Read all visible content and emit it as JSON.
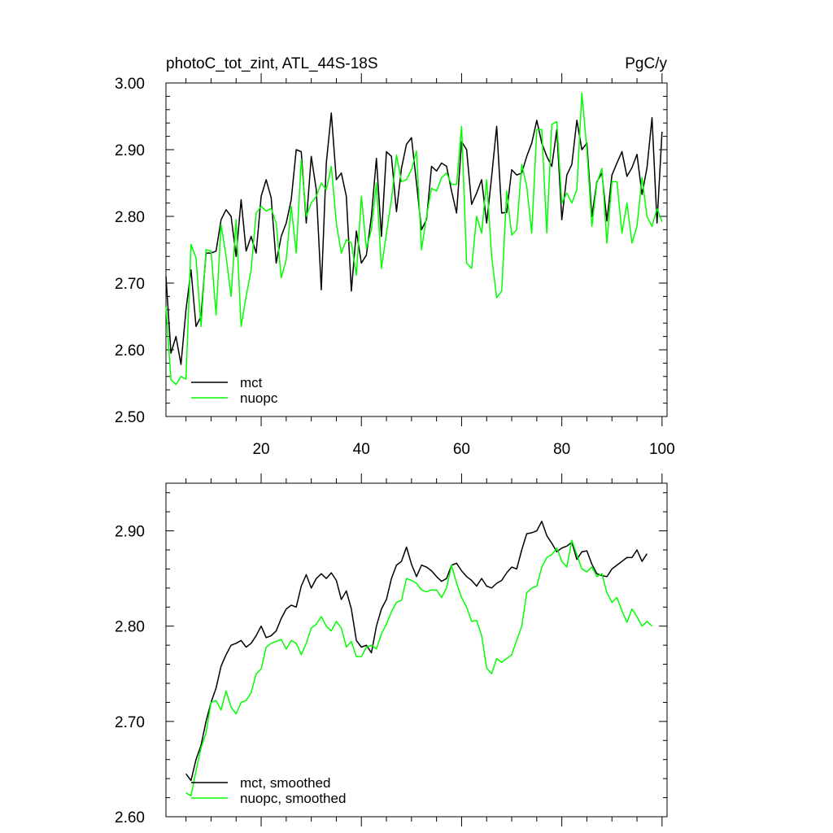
{
  "chart_data": [
    {
      "type": "line",
      "title": "photoC_tot_zint, ATL_44S-18S",
      "units": "PgC/y",
      "xlim": [
        1,
        101
      ],
      "ylim": [
        2.5,
        3.0
      ],
      "xticks": [
        20,
        40,
        60,
        80,
        100
      ],
      "yticks": [
        2.5,
        2.6,
        2.7,
        2.8,
        2.9,
        3.0
      ],
      "yticklabels": [
        "2.50",
        "2.60",
        "2.70",
        "2.80",
        "2.90",
        "3.00"
      ],
      "legend_position": "bottom-left",
      "series": [
        {
          "name": "mct",
          "color": "#000000",
          "x_start": 1,
          "values": [
            2.71,
            2.595,
            2.62,
            2.578,
            2.66,
            2.72,
            2.635,
            2.65,
            2.745,
            2.745,
            2.748,
            2.795,
            2.81,
            2.8,
            2.74,
            2.825,
            2.748,
            2.77,
            2.745,
            2.83,
            2.855,
            2.828,
            2.73,
            2.77,
            2.79,
            2.825,
            2.9,
            2.897,
            2.79,
            2.89,
            2.84,
            2.69,
            2.88,
            2.955,
            2.855,
            2.865,
            2.83,
            2.688,
            2.778,
            2.73,
            2.742,
            2.8,
            2.887,
            2.77,
            2.897,
            2.89,
            2.807,
            2.872,
            2.908,
            2.918,
            2.85,
            2.78,
            2.795,
            2.875,
            2.868,
            2.88,
            2.875,
            2.838,
            2.805,
            2.912,
            2.9,
            2.818,
            2.835,
            2.855,
            2.79,
            2.86,
            2.935,
            2.805,
            2.806,
            2.87,
            2.862,
            2.865,
            2.89,
            2.91,
            2.944,
            2.91,
            2.89,
            2.875,
            2.93,
            2.795,
            2.862,
            2.878,
            2.944,
            2.9,
            2.91,
            2.8,
            2.852,
            2.865,
            2.793,
            2.862,
            2.88,
            2.897,
            2.86,
            2.873,
            2.893,
            2.833,
            2.873,
            2.948,
            2.79,
            2.927
          ]
        },
        {
          "name": "nuopc",
          "color": "#00ff00",
          "x_start": 1,
          "values": [
            2.665,
            2.555,
            2.548,
            2.56,
            2.556,
            2.758,
            2.738,
            2.635,
            2.75,
            2.748,
            2.652,
            2.788,
            2.74,
            2.68,
            2.795,
            2.635,
            2.68,
            2.72,
            2.805,
            2.815,
            2.808,
            2.812,
            2.79,
            2.708,
            2.735,
            2.815,
            2.745,
            2.885,
            2.8,
            2.82,
            2.83,
            2.85,
            2.84,
            2.875,
            2.79,
            2.745,
            2.765,
            2.76,
            2.712,
            2.83,
            2.752,
            2.78,
            2.85,
            2.722,
            2.775,
            2.825,
            2.892,
            2.852,
            2.855,
            2.87,
            2.898,
            2.75,
            2.8,
            2.842,
            2.838,
            2.858,
            2.865,
            2.848,
            2.848,
            2.935,
            2.73,
            2.722,
            2.8,
            2.775,
            2.855,
            2.74,
            2.678,
            2.688,
            2.838,
            2.772,
            2.78,
            2.878,
            2.845,
            2.775,
            2.93,
            2.93,
            2.775,
            2.938,
            2.942,
            2.82,
            2.835,
            2.82,
            2.84,
            2.985,
            2.9,
            2.785,
            2.85,
            2.872,
            2.76,
            2.852,
            2.852,
            2.775,
            2.82,
            2.76,
            2.785,
            2.858,
            2.8,
            2.785,
            2.812,
            2.792
          ]
        }
      ]
    },
    {
      "type": "line",
      "title": "",
      "xlim": [
        1,
        101
      ],
      "ylim": [
        2.6,
        2.95
      ],
      "xticks": [
        20,
        40,
        60,
        80,
        100
      ],
      "yticks": [
        2.6,
        2.7,
        2.8,
        2.9
      ],
      "yticklabels": [
        "2.60",
        "2.70",
        "2.80",
        "2.90"
      ],
      "legend_position": "bottom-left",
      "series": [
        {
          "name": "mct, smoothed",
          "color": "#000000",
          "x_start": 5,
          "values": [
            2.645,
            2.638,
            2.66,
            2.675,
            2.7,
            2.72,
            2.735,
            2.758,
            2.77,
            2.78,
            2.782,
            2.785,
            2.778,
            2.782,
            2.79,
            2.8,
            2.788,
            2.79,
            2.795,
            2.808,
            2.818,
            2.822,
            2.82,
            2.842,
            2.854,
            2.84,
            2.85,
            2.855,
            2.85,
            2.856,
            2.848,
            2.828,
            2.837,
            2.818,
            2.785,
            2.778,
            2.78,
            2.772,
            2.8,
            2.818,
            2.828,
            2.85,
            2.864,
            2.868,
            2.883,
            2.865,
            2.852,
            2.864,
            2.862,
            2.858,
            2.852,
            2.847,
            2.85,
            2.864,
            2.866,
            2.858,
            2.852,
            2.848,
            2.842,
            2.85,
            2.842,
            2.84,
            2.845,
            2.848,
            2.856,
            2.862,
            2.86,
            2.88,
            2.897,
            2.898,
            2.9,
            2.91,
            2.895,
            2.887,
            2.878,
            2.882,
            2.884,
            2.888,
            2.87,
            2.878,
            2.879,
            2.865,
            2.855,
            2.853,
            2.852,
            2.86,
            2.864,
            2.868,
            2.872,
            2.872,
            2.88,
            2.868,
            2.876
          ]
        },
        {
          "name": "nuopc, smoothed",
          "color": "#00ff00",
          "x_start": 5,
          "values": [
            2.625,
            2.622,
            2.648,
            2.672,
            2.688,
            2.72,
            2.722,
            2.712,
            2.732,
            2.715,
            2.708,
            2.72,
            2.722,
            2.73,
            2.75,
            2.755,
            2.778,
            2.782,
            2.784,
            2.786,
            2.776,
            2.785,
            2.782,
            2.77,
            2.782,
            2.798,
            2.802,
            2.81,
            2.8,
            2.795,
            2.805,
            2.798,
            2.778,
            2.784,
            2.768,
            2.768,
            2.778,
            2.78,
            2.776,
            2.792,
            2.802,
            2.815,
            2.825,
            2.827,
            2.85,
            2.848,
            2.845,
            2.838,
            2.836,
            2.838,
            2.838,
            2.83,
            2.84,
            2.864,
            2.845,
            2.83,
            2.82,
            2.805,
            2.806,
            2.79,
            2.756,
            2.75,
            2.766,
            2.762,
            2.766,
            2.77,
            2.785,
            2.8,
            2.835,
            2.84,
            2.842,
            2.862,
            2.872,
            2.875,
            2.882,
            2.868,
            2.862,
            2.89,
            2.875,
            2.86,
            2.857,
            2.862,
            2.852,
            2.855,
            2.835,
            2.825,
            2.83,
            2.816,
            2.804,
            2.818,
            2.81,
            2.8,
            2.805,
            2.8
          ]
        }
      ]
    }
  ]
}
